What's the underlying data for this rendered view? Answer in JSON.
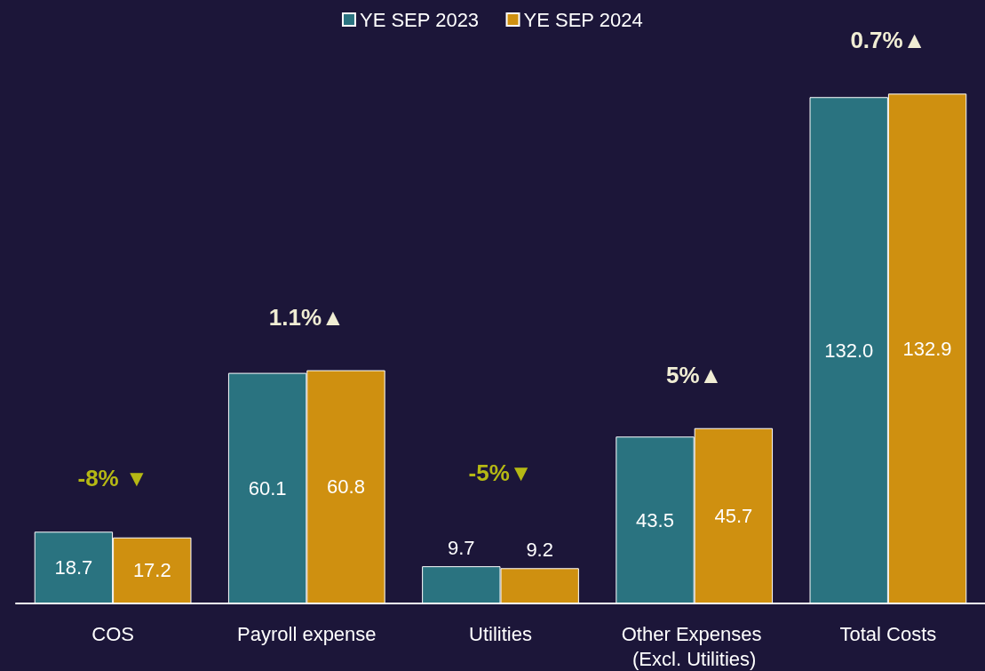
{
  "chart_data": {
    "type": "bar",
    "categories": [
      "COS",
      "Payroll expense",
      "Utilities",
      "Other Expenses (Excl. Utilities)",
      "Total Costs"
    ],
    "series": [
      {
        "name": "YE SEP 2023",
        "color": "#2a7380",
        "values": [
          18.7,
          60.1,
          9.7,
          43.5,
          132.0
        ],
        "value_labels": [
          "18.7",
          "60.1",
          "9.7",
          "43.5",
          "132.0"
        ]
      },
      {
        "name": "YE SEP 2024",
        "color": "#cf9010",
        "values": [
          17.2,
          60.8,
          9.2,
          45.7,
          132.9
        ],
        "value_labels": [
          "17.2",
          "60.8",
          "9.2",
          "45.7",
          "132.9"
        ]
      }
    ],
    "legend": "top",
    "annotations": [
      "-8% ▼",
      "1.1%▲",
      "-5%▼",
      "5%▲",
      "0.7%▲"
    ]
  }
}
